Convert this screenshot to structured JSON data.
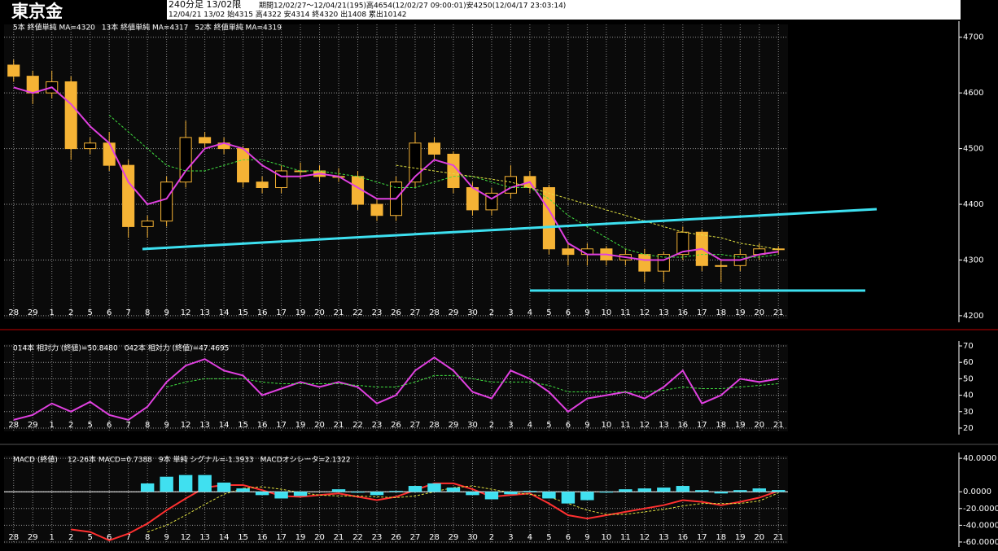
{
  "header": {
    "symbol": "東京金",
    "timeframe": "240分足 13/02限",
    "period": "期間12/02/27～12/04/21(195)高4654(12/02/27 09:00:01)安4250(12/04/17 23:03:14)",
    "last": "12/04/21 13/02 始4315 高4322 安4314 終4320 出1408 累出10142"
  },
  "chart_data": [
    {
      "type": "candlestick",
      "color": "#f5b335",
      "categories": [
        "28",
        "29",
        "1",
        "2",
        "5",
        "6",
        "7",
        "8",
        "9",
        "12",
        "13",
        "14",
        "15",
        "16",
        "17",
        "19",
        "20",
        "21",
        "22",
        "23",
        "26",
        "27",
        "28",
        "29",
        "30",
        "2",
        "3",
        "4",
        "5",
        "6",
        "9",
        "10",
        "11",
        "12",
        "13",
        "16",
        "17",
        "18",
        "19",
        "20",
        "21"
      ],
      "open": [
        4650,
        4630,
        4600,
        4620,
        4500,
        4510,
        4470,
        4360,
        4370,
        4440,
        4520,
        4510,
        4500,
        4440,
        4430,
        4460,
        4460,
        4450,
        4450,
        4400,
        4380,
        4440,
        4510,
        4490,
        4430,
        4390,
        4420,
        4450,
        4430,
        4320,
        4310,
        4320,
        4300,
        4310,
        4280,
        4310,
        4350,
        4290,
        4290,
        4310,
        4320
      ],
      "high": [
        4660,
        4640,
        4640,
        4630,
        4520,
        4530,
        4480,
        4380,
        4450,
        4550,
        4530,
        4520,
        4505,
        4450,
        4470,
        4475,
        4470,
        4465,
        4460,
        4410,
        4450,
        4530,
        4520,
        4495,
        4440,
        4430,
        4470,
        4460,
        4435,
        4330,
        4330,
        4325,
        4320,
        4320,
        4315,
        4360,
        4355,
        4300,
        4320,
        4330,
        4325
      ],
      "low": [
        4620,
        4580,
        4590,
        4480,
        4490,
        4460,
        4340,
        4340,
        4360,
        4430,
        4500,
        4490,
        4430,
        4420,
        4420,
        4445,
        4440,
        4440,
        4390,
        4370,
        4370,
        4430,
        4480,
        4420,
        4380,
        4380,
        4410,
        4420,
        4310,
        4290,
        4290,
        4290,
        4290,
        4260,
        4260,
        4300,
        4280,
        4260,
        4280,
        4300,
        4310
      ],
      "close": [
        4630,
        4600,
        4620,
        4500,
        4510,
        4470,
        4360,
        4370,
        4440,
        4520,
        4510,
        4500,
        4440,
        4430,
        4460,
        4460,
        4450,
        4450,
        4400,
        4380,
        4440,
        4510,
        4490,
        4430,
        4390,
        4420,
        4450,
        4430,
        4320,
        4310,
        4320,
        4300,
        4310,
        4280,
        4310,
        4350,
        4290,
        4290,
        4310,
        4320,
        4320
      ],
      "series": [
        {
          "name": "5本 終値単純 MA=4320",
          "color": "#e040e0",
          "style": "solid",
          "values": [
            4610,
            4600,
            4610,
            4580,
            4540,
            4510,
            4440,
            4400,
            4410,
            4460,
            4500,
            4510,
            4500,
            4470,
            4450,
            4450,
            4455,
            4450,
            4430,
            4410,
            4410,
            4450,
            4480,
            4470,
            4430,
            4410,
            4430,
            4440,
            4390,
            4330,
            4310,
            4310,
            4305,
            4300,
            4300,
            4315,
            4320,
            4300,
            4300,
            4310,
            4315
          ]
        },
        {
          "name": "13本 終値単純 MA=4317",
          "color": "#40e040",
          "style": "dashed",
          "values": [
            null,
            null,
            null,
            null,
            null,
            4560,
            4530,
            4500,
            4470,
            4460,
            4460,
            4470,
            4480,
            4480,
            4470,
            4460,
            4460,
            4455,
            4450,
            4440,
            4430,
            4430,
            4440,
            4450,
            4450,
            4440,
            4430,
            4430,
            4410,
            4380,
            4360,
            4340,
            4320,
            4310,
            4305,
            4305,
            4310,
            4310,
            4305,
            4305,
            4310
          ]
        },
        {
          "name": "52本 終値単純 MA=4319",
          "color": "#e0e040",
          "style": "dashed",
          "values": [
            null,
            null,
            null,
            null,
            null,
            null,
            null,
            null,
            null,
            null,
            null,
            null,
            null,
            null,
            null,
            null,
            null,
            null,
            null,
            null,
            4470,
            4465,
            4460,
            4455,
            4450,
            4445,
            4440,
            4430,
            4420,
            4410,
            4400,
            4390,
            4380,
            4370,
            4360,
            4350,
            4345,
            4340,
            4330,
            4325,
            4319
          ]
        }
      ],
      "ylim": [
        4194,
        4723
      ],
      "yticks": [
        4200,
        4300,
        4400,
        4500,
        4600,
        4700
      ],
      "grid": true
    },
    {
      "type": "line",
      "series": [
        {
          "name": "014本 相対力 (終値)=50.8480",
          "color": "#e040e0",
          "style": "solid",
          "values": [
            25,
            28,
            35,
            30,
            36,
            28,
            25,
            33,
            48,
            58,
            62,
            55,
            52,
            40,
            44,
            48,
            45,
            48,
            45,
            35,
            40,
            55,
            63,
            55,
            42,
            38,
            55,
            50,
            42,
            30,
            38,
            40,
            42,
            38,
            45,
            55,
            35,
            40,
            50,
            48,
            50
          ]
        },
        {
          "name": "042本 相対力 (終値)=47.4695",
          "color": "#40e040",
          "style": "dashed",
          "values": [
            null,
            null,
            null,
            null,
            null,
            null,
            null,
            null,
            45,
            48,
            50,
            50,
            50,
            48,
            47,
            47,
            47,
            47,
            46,
            45,
            45,
            48,
            52,
            52,
            50,
            48,
            48,
            48,
            46,
            42,
            42,
            42,
            42,
            42,
            43,
            45,
            44,
            44,
            45,
            46,
            47
          ]
        }
      ],
      "ylim": [
        18,
        71
      ],
      "yticks": [
        20,
        30,
        40,
        50,
        60,
        70
      ],
      "grid": true
    },
    {
      "type": "line",
      "title": "MACD (終値)",
      "series": [
        {
          "name": "12-26本 MACD=0.7388",
          "color": "#ff3030",
          "style": "solid",
          "values": [
            null,
            null,
            null,
            -45,
            -48,
            -58,
            -50,
            -38,
            -22,
            -8,
            5,
            8,
            8,
            2,
            -5,
            -6,
            -4,
            -2,
            -6,
            -10,
            -6,
            2,
            10,
            10,
            3,
            -6,
            -4,
            -2,
            -14,
            -28,
            -32,
            -28,
            -24,
            -20,
            -16,
            -10,
            -12,
            -16,
            -12,
            -7,
            1
          ]
        },
        {
          "name": "9本 単純 シグナル=-1.3933",
          "color": "#e0e040",
          "style": "dashed",
          "values": [
            null,
            null,
            null,
            null,
            null,
            null,
            null,
            -48,
            -40,
            -28,
            -15,
            -3,
            4,
            6,
            3,
            -1,
            -4,
            -5,
            -5,
            -6,
            -7,
            -5,
            0,
            5,
            7,
            3,
            -1,
            -3,
            -6,
            -14,
            -22,
            -27,
            -27,
            -24,
            -21,
            -17,
            -14,
            -14,
            -14,
            -11,
            -1.4
          ]
        },
        {
          "name": "MACDオシレータ=2.1322",
          "color": "#40e0f0",
          "style": "bar",
          "values": [
            null,
            null,
            null,
            null,
            null,
            null,
            null,
            10,
            18,
            20,
            20,
            11,
            4,
            -4,
            -8,
            -5,
            0,
            3,
            -1,
            -4,
            1,
            7,
            10,
            5,
            -4,
            -9,
            -3,
            1,
            -8,
            -14,
            -10,
            -1,
            3,
            4,
            5,
            7,
            2,
            -2,
            2,
            4,
            2.1
          ]
        }
      ],
      "ylim": [
        -62,
        43
      ],
      "yticks": [
        {
          "value": 40,
          "label": "40.0000"
        },
        {
          "value": 0,
          "label": "0.0000"
        },
        {
          "value": -20,
          "label": "-20.0000"
        },
        {
          "value": -40,
          "label": "-40.0000"
        },
        {
          "value": -60,
          "label": "-60.0000"
        }
      ],
      "grid": true
    }
  ]
}
